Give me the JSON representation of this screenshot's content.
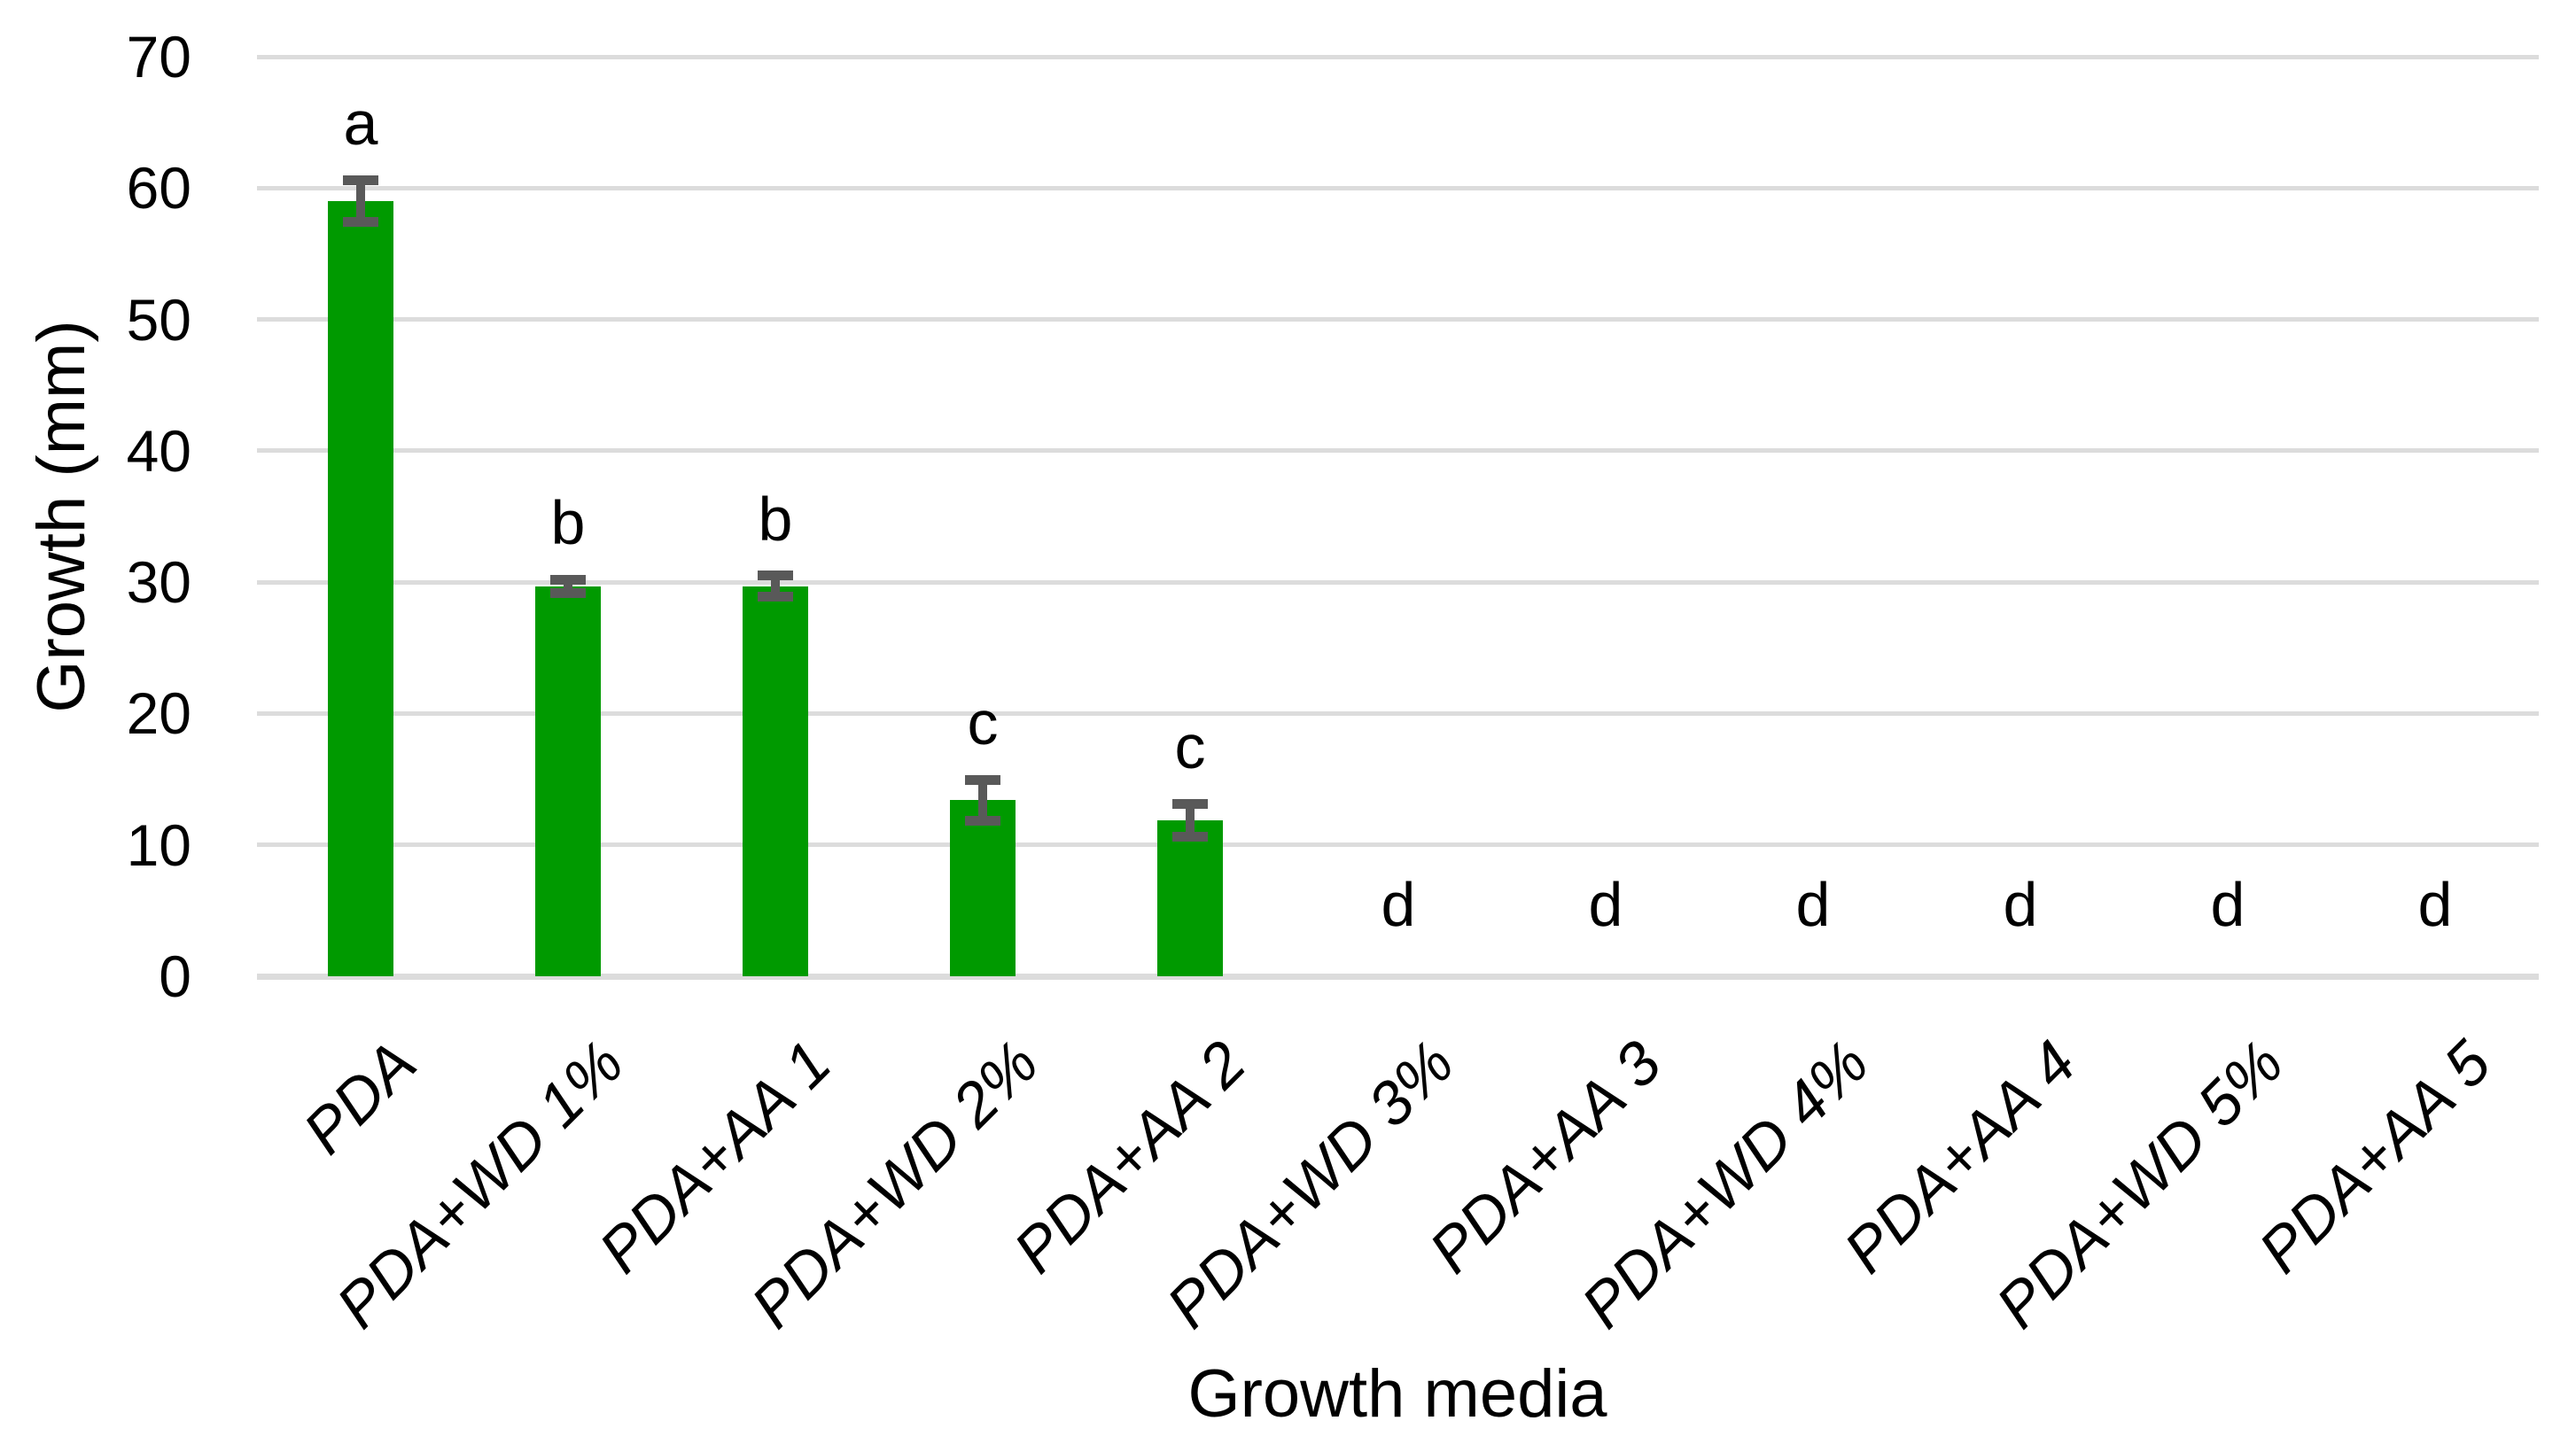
{
  "chart_data": {
    "type": "bar",
    "title": "",
    "xlabel": "Growth media",
    "ylabel": "Growth (mm)",
    "categories": [
      "PDA",
      "PDA+WD 1%",
      "PDA+AA 1",
      "PDA+WD 2%",
      "PDA+AA 2",
      "PDA+WD 3%",
      "PDA+AA 3",
      "PDA+WD 4%",
      "PDA+AA 4",
      "PDA+WD 5%",
      "PDA+AA 5"
    ],
    "values": [
      59,
      29.7,
      29.7,
      13.4,
      11.9,
      0,
      0,
      0,
      0,
      0,
      0
    ],
    "error_bars": [
      1.6,
      0.5,
      0.8,
      1.55,
      1.25,
      0,
      0,
      0,
      0,
      0,
      0
    ],
    "sig_letters": [
      "a",
      "b",
      "b",
      "c",
      "c",
      "d",
      "d",
      "d",
      "d",
      "d",
      "d"
    ],
    "ylim": [
      0,
      70
    ],
    "yticks": [
      0,
      10,
      20,
      30,
      40,
      50,
      60,
      70
    ],
    "grid": "horizontal gridlines on, no axis lines, no legend",
    "legend": "none",
    "bar_color": "#009a00",
    "error_bar_color": "#595959",
    "gridline_color": "#dcdcdc",
    "text_color": "#000000",
    "background_color": "#ffffff"
  }
}
